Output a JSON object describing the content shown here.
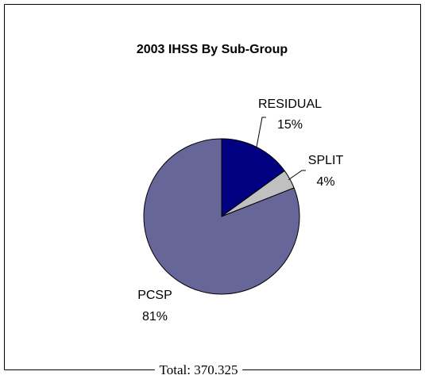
{
  "chart_data": {
    "type": "pie",
    "title": "2003 IHSS By Sub-Group",
    "categories": [
      "RESIDUAL",
      "SPLIT",
      "PCSP"
    ],
    "values": [
      15,
      4,
      81
    ],
    "value_labels": [
      "15%",
      "4%",
      "81%"
    ],
    "colors": [
      "#000080",
      "#c0c0c0",
      "#666699"
    ],
    "footer": "Total: 370.325"
  }
}
